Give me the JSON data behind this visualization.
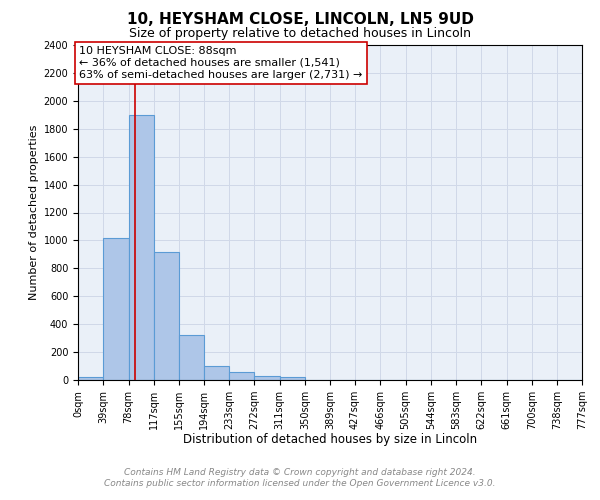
{
  "title": "10, HEYSHAM CLOSE, LINCOLN, LN5 9UD",
  "subtitle": "Size of property relative to detached houses in Lincoln",
  "xlabel": "Distribution of detached houses by size in Lincoln",
  "ylabel": "Number of detached properties",
  "bin_edges": [
    0,
    39,
    78,
    117,
    155,
    194,
    233,
    272,
    311,
    350,
    389,
    427,
    466,
    505,
    544,
    583,
    622,
    661,
    700,
    738,
    777
  ],
  "bar_heights": [
    20,
    1020,
    1900,
    920,
    320,
    100,
    55,
    30,
    20,
    0,
    0,
    0,
    0,
    0,
    0,
    0,
    0,
    0,
    0,
    0
  ],
  "bar_color": "#aec6e8",
  "bar_edge_color": "#5b9bd5",
  "bar_edge_width": 0.8,
  "grid_color": "#d0d8e8",
  "plot_bg_color": "#eaf0f8",
  "fig_bg_color": "#ffffff",
  "red_line_x": 88,
  "red_line_color": "#cc0000",
  "annotation_text": "10 HEYSHAM CLOSE: 88sqm\n← 36% of detached houses are smaller (1,541)\n63% of semi-detached houses are larger (2,731) →",
  "annotation_box_color": "white",
  "annotation_box_edge_color": "#cc0000",
  "annotation_fontsize": 8.0,
  "ylim": [
    0,
    2400
  ],
  "yticks": [
    0,
    200,
    400,
    600,
    800,
    1000,
    1200,
    1400,
    1600,
    1800,
    2000,
    2200,
    2400
  ],
  "xtick_labels": [
    "0sqm",
    "39sqm",
    "78sqm",
    "117sqm",
    "155sqm",
    "194sqm",
    "233sqm",
    "272sqm",
    "311sqm",
    "350sqm",
    "389sqm",
    "427sqm",
    "466sqm",
    "505sqm",
    "544sqm",
    "583sqm",
    "622sqm",
    "661sqm",
    "700sqm",
    "738sqm",
    "777sqm"
  ],
  "title_fontsize": 11,
  "subtitle_fontsize": 9,
  "xlabel_fontsize": 8.5,
  "ylabel_fontsize": 8,
  "tick_fontsize": 7,
  "footer_line1": "Contains HM Land Registry data © Crown copyright and database right 2024.",
  "footer_line2": "Contains public sector information licensed under the Open Government Licence v3.0.",
  "footer_fontsize": 6.5
}
